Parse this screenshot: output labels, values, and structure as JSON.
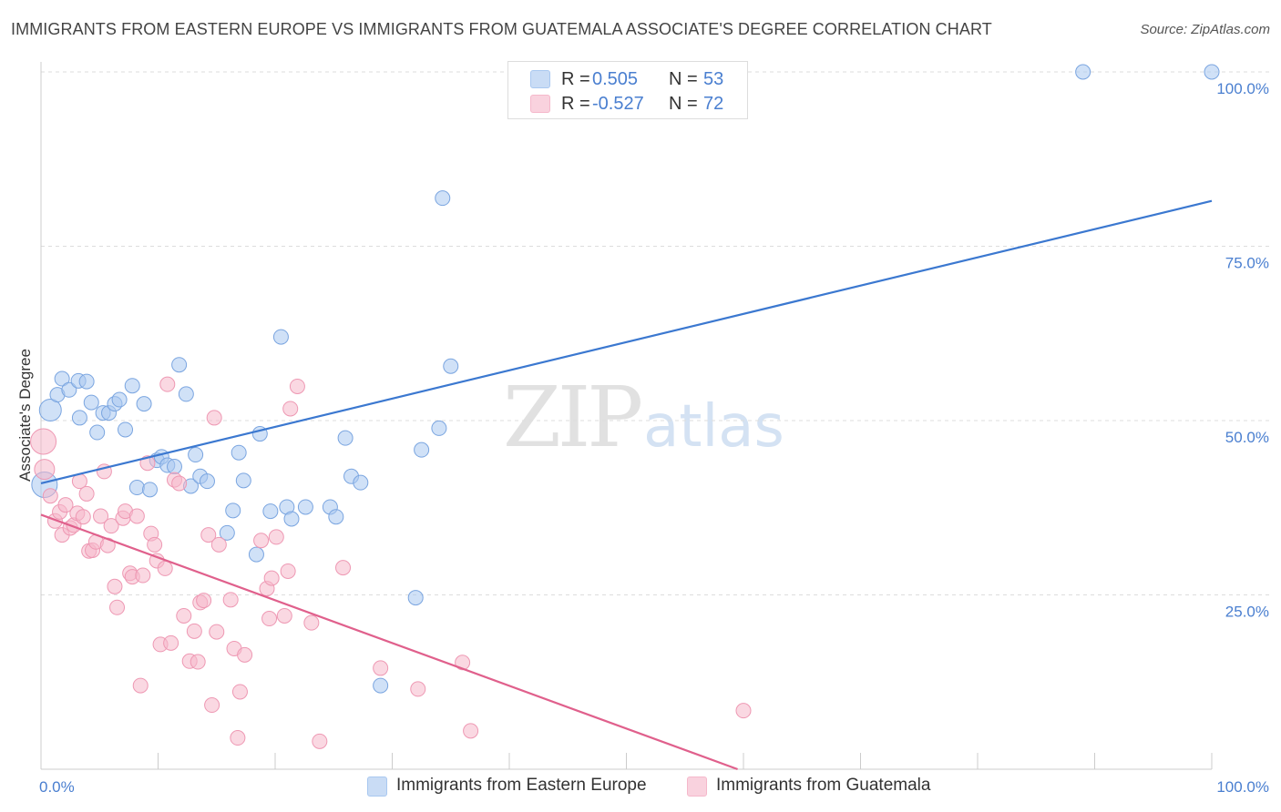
{
  "title": "IMMIGRANTS FROM EASTERN EUROPE VS IMMIGRANTS FROM GUATEMALA ASSOCIATE'S DEGREE CORRELATION CHART",
  "source": "Source: ZipAtlas.com",
  "watermark": {
    "zip": "ZIP",
    "atlas": "atlas"
  },
  "stats": [
    {
      "r_label": "R =",
      "r_value": "0.505",
      "n_label": "N =",
      "n_value": "53",
      "color": "#a9c8f0"
    },
    {
      "r_label": "R =",
      "r_value": "-0.527",
      "n_label": "N =",
      "n_value": "72",
      "color": "#f5b8cb"
    }
  ],
  "legend": [
    {
      "label": "Immigrants from Eastern Europe",
      "color": "#a9c8f0"
    },
    {
      "label": "Immigrants from Guatemala",
      "color": "#f5b8cb"
    }
  ],
  "chart_data": {
    "type": "scatter",
    "title": "IMMIGRANTS FROM EASTERN EUROPE VS IMMIGRANTS FROM GUATEMALA ASSOCIATE'S DEGREE CORRELATION CHART",
    "xlabel": "",
    "ylabel": "Associate's Degree",
    "xlim": [
      0,
      100
    ],
    "ylim": [
      0,
      100
    ],
    "x_tick_labels": [
      {
        "value": 0,
        "label": "0.0%"
      },
      {
        "value": 100,
        "label": "100.0%"
      }
    ],
    "y_tick_labels": [
      {
        "value": 25,
        "label": "25.0%"
      },
      {
        "value": 50,
        "label": "50.0%"
      },
      {
        "value": 75,
        "label": "75.0%"
      },
      {
        "value": 100,
        "label": "100.0%"
      }
    ],
    "grid": "horizontal dashed",
    "legend_position": "bottom",
    "series": [
      {
        "name": "Immigrants from Eastern Europe",
        "color": "#a9c8f0",
        "stroke": "#7aa5e0",
        "trend_color": "#3b78d0",
        "trend": {
          "x": [
            0,
            100
          ],
          "y": [
            41.0,
            81.5
          ]
        },
        "points": [
          {
            "x": 0.3,
            "y": 40.8,
            "s": 14
          },
          {
            "x": 0.8,
            "y": 51.5,
            "s": 12
          },
          {
            "x": 1.4,
            "y": 53.7
          },
          {
            "x": 1.8,
            "y": 56.0
          },
          {
            "x": 2.4,
            "y": 54.4
          },
          {
            "x": 3.2,
            "y": 55.7
          },
          {
            "x": 3.3,
            "y": 50.4
          },
          {
            "x": 3.9,
            "y": 55.6
          },
          {
            "x": 4.3,
            "y": 52.6
          },
          {
            "x": 4.8,
            "y": 48.3
          },
          {
            "x": 5.3,
            "y": 51.1
          },
          {
            "x": 5.8,
            "y": 51.1
          },
          {
            "x": 6.3,
            "y": 52.4
          },
          {
            "x": 6.7,
            "y": 53.0
          },
          {
            "x": 7.2,
            "y": 48.7
          },
          {
            "x": 7.8,
            "y": 55.0
          },
          {
            "x": 8.2,
            "y": 40.4
          },
          {
            "x": 8.8,
            "y": 52.4
          },
          {
            "x": 9.3,
            "y": 40.1
          },
          {
            "x": 9.9,
            "y": 44.3
          },
          {
            "x": 10.3,
            "y": 44.8
          },
          {
            "x": 10.8,
            "y": 43.6
          },
          {
            "x": 11.4,
            "y": 43.4
          },
          {
            "x": 11.8,
            "y": 58.0
          },
          {
            "x": 12.4,
            "y": 53.8
          },
          {
            "x": 12.8,
            "y": 40.6
          },
          {
            "x": 13.2,
            "y": 45.1
          },
          {
            "x": 13.6,
            "y": 42.0
          },
          {
            "x": 14.2,
            "y": 41.3
          },
          {
            "x": 15.9,
            "y": 33.9
          },
          {
            "x": 16.4,
            "y": 37.1
          },
          {
            "x": 16.9,
            "y": 45.4
          },
          {
            "x": 17.3,
            "y": 41.4
          },
          {
            "x": 18.4,
            "y": 30.8
          },
          {
            "x": 18.7,
            "y": 48.1
          },
          {
            "x": 19.6,
            "y": 37.0
          },
          {
            "x": 20.5,
            "y": 62.0
          },
          {
            "x": 21.0,
            "y": 37.6
          },
          {
            "x": 21.4,
            "y": 35.9
          },
          {
            "x": 22.6,
            "y": 37.6
          },
          {
            "x": 24.7,
            "y": 37.6
          },
          {
            "x": 25.2,
            "y": 36.2
          },
          {
            "x": 26.0,
            "y": 47.5
          },
          {
            "x": 26.5,
            "y": 42.0
          },
          {
            "x": 27.3,
            "y": 41.1
          },
          {
            "x": 29.0,
            "y": 12.0
          },
          {
            "x": 32.0,
            "y": 24.6
          },
          {
            "x": 32.5,
            "y": 45.8
          },
          {
            "x": 34.0,
            "y": 48.9
          },
          {
            "x": 34.3,
            "y": 81.9
          },
          {
            "x": 35.0,
            "y": 57.8
          },
          {
            "x": 89.0,
            "y": 100.0
          },
          {
            "x": 100.0,
            "y": 100.0
          }
        ]
      },
      {
        "name": "Immigrants from Guatemala",
        "color": "#f5b8cb",
        "stroke": "#ee98b3",
        "trend_color": "#e0608c",
        "trend": {
          "x": [
            0,
            59.5
          ],
          "y": [
            36.5,
            0
          ]
        },
        "points": [
          {
            "x": 0.2,
            "y": 47.0,
            "s": 14
          },
          {
            "x": 0.3,
            "y": 43.0,
            "s": 11
          },
          {
            "x": 0.8,
            "y": 39.2
          },
          {
            "x": 1.2,
            "y": 35.6
          },
          {
            "x": 1.6,
            "y": 36.9
          },
          {
            "x": 1.8,
            "y": 33.6
          },
          {
            "x": 2.1,
            "y": 37.9
          },
          {
            "x": 2.5,
            "y": 34.6
          },
          {
            "x": 2.8,
            "y": 35.0
          },
          {
            "x": 3.1,
            "y": 36.7
          },
          {
            "x": 3.3,
            "y": 41.3
          },
          {
            "x": 3.6,
            "y": 36.2
          },
          {
            "x": 3.9,
            "y": 39.5
          },
          {
            "x": 4.1,
            "y": 31.3
          },
          {
            "x": 4.4,
            "y": 31.4
          },
          {
            "x": 4.7,
            "y": 32.6
          },
          {
            "x": 5.1,
            "y": 36.3
          },
          {
            "x": 5.4,
            "y": 42.7
          },
          {
            "x": 5.7,
            "y": 32.1
          },
          {
            "x": 6.0,
            "y": 34.9
          },
          {
            "x": 6.3,
            "y": 26.2
          },
          {
            "x": 6.5,
            "y": 23.2
          },
          {
            "x": 7.0,
            "y": 36.0
          },
          {
            "x": 7.2,
            "y": 37.0
          },
          {
            "x": 7.6,
            "y": 28.1
          },
          {
            "x": 7.8,
            "y": 27.6
          },
          {
            "x": 8.2,
            "y": 36.3
          },
          {
            "x": 8.5,
            "y": 12.0
          },
          {
            "x": 8.7,
            "y": 27.8
          },
          {
            "x": 9.1,
            "y": 43.9
          },
          {
            "x": 9.4,
            "y": 33.8
          },
          {
            "x": 9.7,
            "y": 32.2
          },
          {
            "x": 9.9,
            "y": 29.9
          },
          {
            "x": 10.2,
            "y": 17.9
          },
          {
            "x": 10.6,
            "y": 28.8
          },
          {
            "x": 10.8,
            "y": 55.2
          },
          {
            "x": 11.1,
            "y": 18.1
          },
          {
            "x": 11.4,
            "y": 41.5
          },
          {
            "x": 11.8,
            "y": 41.0
          },
          {
            "x": 12.2,
            "y": 22.0
          },
          {
            "x": 12.7,
            "y": 15.5
          },
          {
            "x": 13.1,
            "y": 19.8
          },
          {
            "x": 13.4,
            "y": 15.4
          },
          {
            "x": 13.6,
            "y": 23.9
          },
          {
            "x": 13.9,
            "y": 24.2
          },
          {
            "x": 14.3,
            "y": 33.6
          },
          {
            "x": 14.6,
            "y": 9.2
          },
          {
            "x": 14.8,
            "y": 50.4
          },
          {
            "x": 15.0,
            "y": 19.7
          },
          {
            "x": 15.2,
            "y": 32.2
          },
          {
            "x": 16.2,
            "y": 24.3
          },
          {
            "x": 16.5,
            "y": 17.3
          },
          {
            "x": 16.8,
            "y": 4.5
          },
          {
            "x": 17.0,
            "y": 11.1
          },
          {
            "x": 17.4,
            "y": 16.4
          },
          {
            "x": 18.8,
            "y": 32.8
          },
          {
            "x": 19.3,
            "y": 25.9
          },
          {
            "x": 19.5,
            "y": 21.6
          },
          {
            "x": 19.7,
            "y": 27.4
          },
          {
            "x": 20.1,
            "y": 33.3
          },
          {
            "x": 20.8,
            "y": 22.0
          },
          {
            "x": 21.1,
            "y": 28.4
          },
          {
            "x": 21.3,
            "y": 51.7
          },
          {
            "x": 21.9,
            "y": 54.9
          },
          {
            "x": 23.1,
            "y": 21.0
          },
          {
            "x": 23.8,
            "y": 4.0
          },
          {
            "x": 25.8,
            "y": 28.9
          },
          {
            "x": 29.0,
            "y": 14.5
          },
          {
            "x": 32.2,
            "y": 11.5
          },
          {
            "x": 36.0,
            "y": 15.3
          },
          {
            "x": 36.7,
            "y": 5.5
          },
          {
            "x": 60.0,
            "y": 8.4
          }
        ]
      }
    ]
  }
}
